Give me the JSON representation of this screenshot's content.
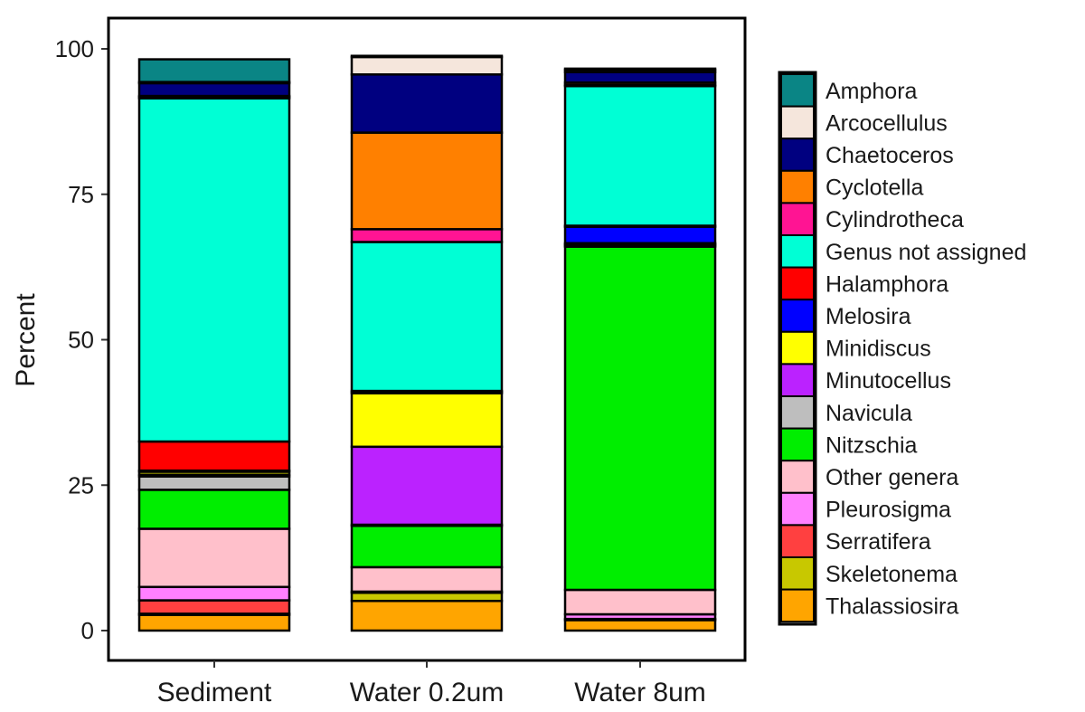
{
  "chart_data": {
    "type": "bar",
    "stacked": true,
    "title": "",
    "xlabel": "",
    "ylabel": "Percent",
    "ylim": [
      0,
      100
    ],
    "yticks": [
      0,
      25,
      50,
      75,
      100
    ],
    "categories": [
      "Sediment",
      "Water 0.2um",
      "Water 8um"
    ],
    "legend_position": "right",
    "series": [
      {
        "name": "Thalassiosira",
        "color": "#FFA500",
        "values": [
          2.7,
          5.1,
          1.8
        ]
      },
      {
        "name": "Skeletonema",
        "color": "#C8C800",
        "values": [
          0.2,
          1.4,
          0.2
        ]
      },
      {
        "name": "Serratifera",
        "color": "#FF4040",
        "values": [
          2.3,
          0.0,
          0.0
        ]
      },
      {
        "name": "Pleurosigma",
        "color": "#FF80FF",
        "values": [
          2.3,
          0.2,
          0.8
        ]
      },
      {
        "name": "Other genera",
        "color": "#FFC0CB",
        "values": [
          10.0,
          4.2,
          4.2
        ]
      },
      {
        "name": "Nitzschia",
        "color": "#00EE00",
        "values": [
          6.7,
          7.1,
          59.0
        ]
      },
      {
        "name": "Navicula",
        "color": "#BEBEBE",
        "values": [
          2.3,
          0.2,
          0.2
        ]
      },
      {
        "name": "Minutocellus",
        "color": "#BB22FF",
        "values": [
          0.3,
          13.4,
          0.2
        ]
      },
      {
        "name": "Minidiscus",
        "color": "#FFFF00",
        "values": [
          0.5,
          9.2,
          0.2
        ]
      },
      {
        "name": "Melosira",
        "color": "#0000FF",
        "values": [
          0.2,
          0.2,
          2.8
        ]
      },
      {
        "name": "Halamphora",
        "color": "#FF0000",
        "values": [
          5.0,
          0.2,
          0.2
        ]
      },
      {
        "name": "Genus not assigned",
        "color": "#00FFD5",
        "values": [
          59.0,
          25.6,
          24.0
        ]
      },
      {
        "name": "Cylindrotheca",
        "color": "#FF1493",
        "values": [
          0.2,
          2.2,
          0.2
        ]
      },
      {
        "name": "Cyclotella",
        "color": "#FF8000",
        "values": [
          0.2,
          16.6,
          0.4
        ]
      },
      {
        "name": "Chaetoceros",
        "color": "#000080",
        "values": [
          2.2,
          10.0,
          1.8
        ]
      },
      {
        "name": "Arcocellulus",
        "color": "#F5E6DC",
        "values": [
          0.2,
          3.0,
          0.4
        ]
      },
      {
        "name": "Amphora",
        "color": "#0A8585",
        "values": [
          3.9,
          0.2,
          0.2
        ]
      }
    ],
    "legend_order": [
      "Amphora",
      "Arcocellulus",
      "Chaetoceros",
      "Cyclotella",
      "Cylindrotheca",
      "Genus not assigned",
      "Halamphora",
      "Melosira",
      "Minidiscus",
      "Minutocellus",
      "Navicula",
      "Nitzschia",
      "Other genera",
      "Pleurosigma",
      "Serratifera",
      "Skeletonema",
      "Thalassiosira"
    ]
  }
}
